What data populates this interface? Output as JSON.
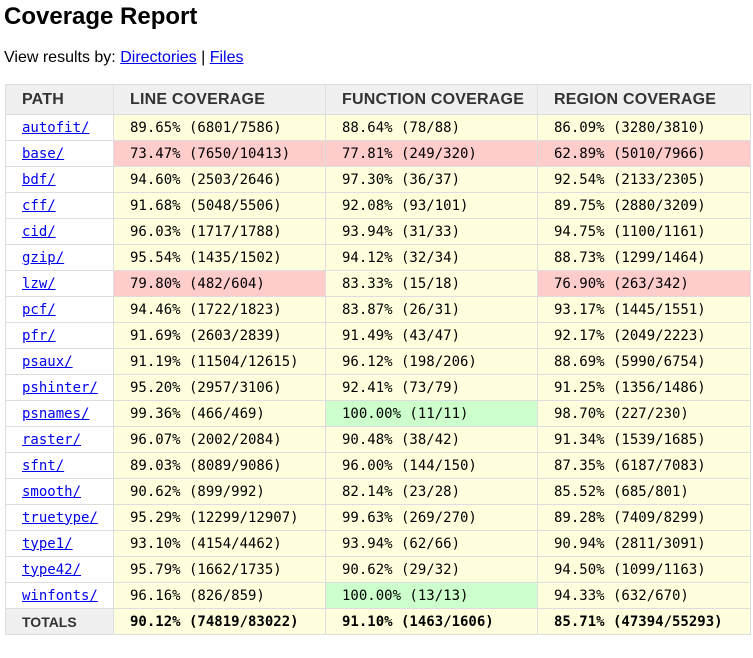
{
  "title": "Coverage Report",
  "view_by": {
    "label": "View results by: ",
    "directories": "Directories",
    "separator": " | ",
    "files": "Files"
  },
  "headers": [
    "PATH",
    "LINE COVERAGE",
    "FUNCTION COVERAGE",
    "REGION COVERAGE"
  ],
  "colors": {
    "mid": "#ffffdd",
    "low": "#ffcccc",
    "high": "#ccffcc",
    "header": "#f0f0f0"
  },
  "rows": [
    {
      "path": "autofit/",
      "line": "89.65% (6801/7586)",
      "line_c": "mid",
      "func": "88.64% (78/88)",
      "func_c": "mid",
      "region": "86.09% (3280/3810)",
      "region_c": "mid"
    },
    {
      "path": "base/",
      "line": "73.47% (7650/10413)",
      "line_c": "low",
      "func": "77.81% (249/320)",
      "func_c": "low",
      "region": "62.89% (5010/7966)",
      "region_c": "low"
    },
    {
      "path": "bdf/",
      "line": "94.60% (2503/2646)",
      "line_c": "mid",
      "func": "97.30% (36/37)",
      "func_c": "mid",
      "region": "92.54% (2133/2305)",
      "region_c": "mid"
    },
    {
      "path": "cff/",
      "line": "91.68% (5048/5506)",
      "line_c": "mid",
      "func": "92.08% (93/101)",
      "func_c": "mid",
      "region": "89.75% (2880/3209)",
      "region_c": "mid"
    },
    {
      "path": "cid/",
      "line": "96.03% (1717/1788)",
      "line_c": "mid",
      "func": "93.94% (31/33)",
      "func_c": "mid",
      "region": "94.75% (1100/1161)",
      "region_c": "mid"
    },
    {
      "path": "gzip/",
      "line": "95.54% (1435/1502)",
      "line_c": "mid",
      "func": "94.12% (32/34)",
      "func_c": "mid",
      "region": "88.73% (1299/1464)",
      "region_c": "mid"
    },
    {
      "path": "lzw/",
      "line": "79.80% (482/604)",
      "line_c": "low",
      "func": "83.33% (15/18)",
      "func_c": "mid",
      "region": "76.90% (263/342)",
      "region_c": "low"
    },
    {
      "path": "pcf/",
      "line": "94.46% (1722/1823)",
      "line_c": "mid",
      "func": "83.87% (26/31)",
      "func_c": "mid",
      "region": "93.17% (1445/1551)",
      "region_c": "mid"
    },
    {
      "path": "pfr/",
      "line": "91.69% (2603/2839)",
      "line_c": "mid",
      "func": "91.49% (43/47)",
      "func_c": "mid",
      "region": "92.17% (2049/2223)",
      "region_c": "mid"
    },
    {
      "path": "psaux/",
      "line": "91.19% (11504/12615)",
      "line_c": "mid",
      "func": "96.12% (198/206)",
      "func_c": "mid",
      "region": "88.69% (5990/6754)",
      "region_c": "mid"
    },
    {
      "path": "pshinter/",
      "line": "95.20% (2957/3106)",
      "line_c": "mid",
      "func": "92.41% (73/79)",
      "func_c": "mid",
      "region": "91.25% (1356/1486)",
      "region_c": "mid"
    },
    {
      "path": "psnames/",
      "line": "99.36% (466/469)",
      "line_c": "mid",
      "func": "100.00% (11/11)",
      "func_c": "high",
      "region": "98.70% (227/230)",
      "region_c": "mid"
    },
    {
      "path": "raster/",
      "line": "96.07% (2002/2084)",
      "line_c": "mid",
      "func": "90.48% (38/42)",
      "func_c": "mid",
      "region": "91.34% (1539/1685)",
      "region_c": "mid"
    },
    {
      "path": "sfnt/",
      "line": "89.03% (8089/9086)",
      "line_c": "mid",
      "func": "96.00% (144/150)",
      "func_c": "mid",
      "region": "87.35% (6187/7083)",
      "region_c": "mid"
    },
    {
      "path": "smooth/",
      "line": "90.62% (899/992)",
      "line_c": "mid",
      "func": "82.14% (23/28)",
      "func_c": "mid",
      "region": "85.52% (685/801)",
      "region_c": "mid"
    },
    {
      "path": "truetype/",
      "line": "95.29% (12299/12907)",
      "line_c": "mid",
      "func": "99.63% (269/270)",
      "func_c": "mid",
      "region": "89.28% (7409/8299)",
      "region_c": "mid"
    },
    {
      "path": "type1/",
      "line": "93.10% (4154/4462)",
      "line_c": "mid",
      "func": "93.94% (62/66)",
      "func_c": "mid",
      "region": "90.94% (2811/3091)",
      "region_c": "mid"
    },
    {
      "path": "type42/",
      "line": "95.79% (1662/1735)",
      "line_c": "mid",
      "func": "90.62% (29/32)",
      "func_c": "mid",
      "region": "94.50% (1099/1163)",
      "region_c": "mid"
    },
    {
      "path": "winfonts/",
      "line": "96.16% (826/859)",
      "line_c": "mid",
      "func": "100.00% (13/13)",
      "func_c": "high",
      "region": "94.33% (632/670)",
      "region_c": "mid"
    }
  ],
  "totals": {
    "label": "TOTALS",
    "line": "90.12% (74819/83022)",
    "func": "91.10% (1463/1606)",
    "region": "85.71% (47394/55293)"
  }
}
